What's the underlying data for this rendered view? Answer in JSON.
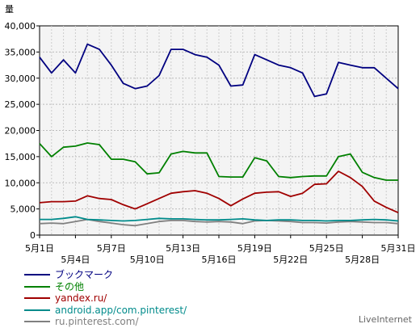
{
  "chart_data": {
    "type": "line",
    "ylabel": "量",
    "ylim": [
      0,
      40000
    ],
    "yticks": [
      0,
      5000,
      10000,
      15000,
      20000,
      25000,
      30000,
      35000,
      40000
    ],
    "ytick_labels": [
      "0",
      "5,000",
      "10,000",
      "15,000",
      "20,000",
      "25,000",
      "30,000",
      "35,000",
      "40,000"
    ],
    "x": [
      "5月1日",
      "5月2日",
      "5月3日",
      "5月4日",
      "5月5日",
      "5月6日",
      "5月7日",
      "5月8日",
      "5月9日",
      "5月10日",
      "5月11日",
      "5月12日",
      "5月13日",
      "5月14日",
      "5月15日",
      "5月16日",
      "5月17日",
      "5月18日",
      "5月19日",
      "5月20日",
      "5月21日",
      "5月22日",
      "5月23日",
      "5月24日",
      "5月25日",
      "5月26日",
      "5月27日",
      "5月28日",
      "5月29日",
      "5月30日",
      "5月31日"
    ],
    "xtick_labels": [
      "5月1日",
      "5月4日",
      "5月7日",
      "5月10日",
      "5月13日",
      "5月16日",
      "5月19日",
      "5月22日",
      "5月25日",
      "5月28日",
      "5月31日"
    ],
    "grid": true,
    "legend_position": "bottom-left",
    "series": [
      {
        "name": "ブックマーク",
        "color": "#000080",
        "values": [
          34000,
          31000,
          33500,
          31000,
          36500,
          35500,
          32500,
          29000,
          28000,
          28500,
          30500,
          35500,
          35500,
          34500,
          34000,
          32500,
          28500,
          28700,
          34500,
          33500,
          32500,
          32000,
          31000,
          26500,
          27000,
          33000,
          32500,
          32000,
          32000,
          30000,
          28000
        ]
      },
      {
        "name": "その他",
        "color": "#008000",
        "values": [
          17500,
          15000,
          16800,
          17000,
          17600,
          17300,
          14500,
          14500,
          14000,
          11700,
          11900,
          15500,
          16000,
          15700,
          15700,
          11200,
          11100,
          11100,
          14800,
          14200,
          11200,
          11000,
          11200,
          11300,
          11300,
          15000,
          15500,
          12000,
          11000,
          10500,
          10500
        ]
      },
      {
        "name": "yandex.ru/",
        "color": "#a00000",
        "values": [
          6200,
          6400,
          6400,
          6500,
          7500,
          7000,
          6800,
          5800,
          5000,
          6000,
          7000,
          8000,
          8300,
          8500,
          8000,
          7000,
          5600,
          6900,
          8000,
          8200,
          8300,
          7400,
          8000,
          9700,
          9800,
          12200,
          11000,
          9300,
          6500,
          5300,
          4300
        ]
      },
      {
        "name": "android.app/com.pinterest/",
        "color": "#008b8b",
        "values": [
          3000,
          3000,
          3200,
          3500,
          3000,
          2900,
          2800,
          2700,
          2800,
          3000,
          3200,
          3100,
          3100,
          3000,
          2900,
          2900,
          3000,
          3100,
          2900,
          2800,
          2900,
          2900,
          2800,
          2800,
          2700,
          2800,
          2800,
          2900,
          3000,
          2900,
          2700
        ]
      },
      {
        "name": "ru.pinterest.com/",
        "color": "#808080",
        "values": [
          2200,
          2300,
          2200,
          2600,
          3000,
          2600,
          2300,
          2000,
          1800,
          2200,
          2600,
          2800,
          2800,
          2600,
          2500,
          2600,
          2500,
          2200,
          2700,
          2800,
          2700,
          2600,
          2400,
          2400,
          2300,
          2500,
          2600,
          2500,
          2400,
          2400,
          2200
        ]
      }
    ]
  },
  "footer": {
    "brand": "LiveInternet"
  }
}
